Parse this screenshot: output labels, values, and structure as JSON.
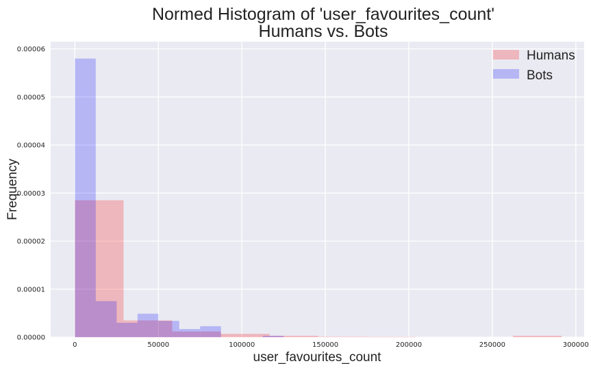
{
  "chart_data": {
    "type": "histogram",
    "title": [
      "Normed Histogram of 'user_favourites_count'",
      "Humans vs. Bots"
    ],
    "xlabel": "user_favourites_count",
    "ylabel": "Frequency",
    "xlim": [
      -14500,
      305000
    ],
    "ylim": [
      0,
      6.15e-05
    ],
    "xticks": [
      {
        "value": 0,
        "label": "0"
      },
      {
        "value": 50000,
        "label": "50000"
      },
      {
        "value": 100000,
        "label": "100000"
      },
      {
        "value": 150000,
        "label": "150000"
      },
      {
        "value": 200000,
        "label": "200000"
      },
      {
        "value": 250000,
        "label": "250000"
      },
      {
        "value": 300000,
        "label": "300000"
      }
    ],
    "yticks": [
      {
        "value": 0,
        "label": "0.00000"
      },
      {
        "value": 1e-05,
        "label": "0.00001"
      },
      {
        "value": 2e-05,
        "label": "0.00002"
      },
      {
        "value": 3e-05,
        "label": "0.00003"
      },
      {
        "value": 4e-05,
        "label": "0.00004"
      },
      {
        "value": 5e-05,
        "label": "0.00005"
      },
      {
        "value": 6e-05,
        "label": "0.00006"
      }
    ],
    "grid": true,
    "legend_position": "top-right",
    "background": "#eaeaf2",
    "series": [
      {
        "name": "Humans",
        "color": "#ff0000",
        "opacity": 0.22,
        "bin_edges": [
          0,
          29150,
          58300,
          87450,
          116600,
          145750,
          174900,
          204050,
          233200,
          262350,
          291500
        ],
        "values": [
          2.85e-05,
          3.5e-06,
          1.2e-06,
          7e-07,
          3e-07,
          1e-07,
          5e-08,
          0,
          0,
          3e-07
        ]
      },
      {
        "name": "Bots",
        "color": "#0000ff",
        "opacity": 0.22,
        "bin_edges": [
          0,
          12500,
          25000,
          37500,
          50000,
          62500,
          75000,
          87500,
          100000,
          112500,
          125000
        ],
        "values": [
          5.8e-05,
          7.5e-06,
          3e-06,
          4.9e-06,
          3.4e-06,
          1.7e-06,
          2.3e-06,
          0,
          0,
          3e-07
        ]
      }
    ]
  }
}
